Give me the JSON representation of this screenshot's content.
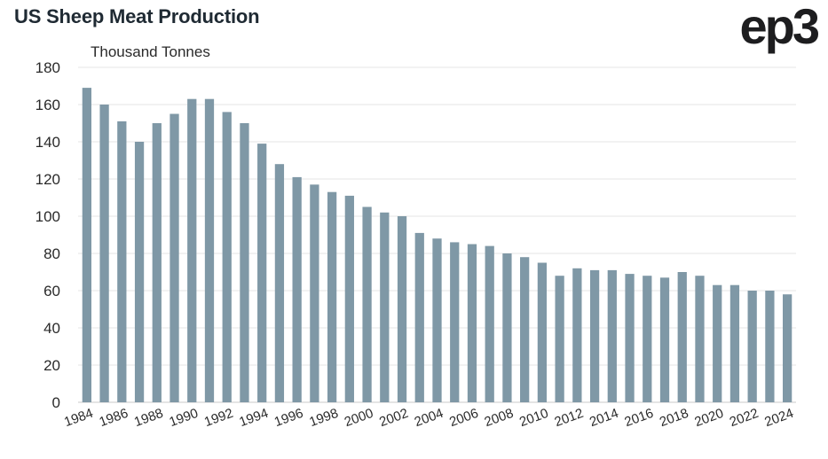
{
  "header": {
    "title": "US Sheep Meat Production",
    "brand": "ep3"
  },
  "chart_data": {
    "type": "bar",
    "title": "US Sheep Meat Production",
    "ylabel": "Thousand Tonnes",
    "xlabel": "",
    "ylim": [
      0,
      180
    ],
    "yticks": [
      0,
      20,
      40,
      60,
      80,
      100,
      120,
      140,
      160,
      180
    ],
    "grid": true,
    "legend": "none",
    "bar_color": "#7f98a6",
    "categories": [
      "1984",
      "1985",
      "1986",
      "1987",
      "1988",
      "1989",
      "1990",
      "1991",
      "1992",
      "1993",
      "1994",
      "1995",
      "1996",
      "1997",
      "1998",
      "1999",
      "2000",
      "2001",
      "2002",
      "2003",
      "2004",
      "2005",
      "2006",
      "2007",
      "2008",
      "2009",
      "2010",
      "2011",
      "2012",
      "2013",
      "2014",
      "2015",
      "2016",
      "2017",
      "2018",
      "2019",
      "2020",
      "2021",
      "2022",
      "2023",
      "2024"
    ],
    "values": [
      169,
      160,
      151,
      140,
      150,
      155,
      163,
      163,
      156,
      150,
      139,
      128,
      121,
      117,
      113,
      111,
      105,
      102,
      100,
      91,
      88,
      86,
      85,
      84,
      80,
      78,
      75,
      68,
      72,
      71,
      71,
      69,
      68,
      67,
      70,
      68,
      63,
      63,
      60,
      60,
      58
    ],
    "xtick_labels": [
      "1984",
      "1986",
      "1988",
      "1990",
      "1992",
      "1994",
      "1996",
      "1998",
      "2000",
      "2002",
      "2004",
      "2006",
      "2008",
      "2010",
      "2012",
      "2014",
      "2016",
      "2018",
      "2020",
      "2022",
      "2024"
    ]
  }
}
